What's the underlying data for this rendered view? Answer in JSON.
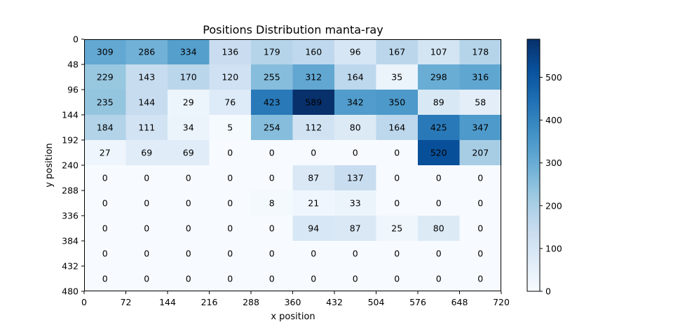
{
  "chart_data": {
    "type": "heatmap",
    "title": "Positions Distribution manta-ray",
    "xlabel": "x position",
    "ylabel": "y position",
    "x_ticks": [
      "0",
      "72",
      "144",
      "216",
      "288",
      "360",
      "432",
      "504",
      "576",
      "648",
      "720"
    ],
    "y_ticks": [
      "0",
      "48",
      "96",
      "144",
      "192",
      "240",
      "288",
      "336",
      "384",
      "432",
      "480"
    ],
    "xlim": [
      0,
      720
    ],
    "ylim": [
      480,
      0
    ],
    "colormap": "Blues",
    "colorbar": {
      "min": 0,
      "max": 589,
      "ticks": [
        "0",
        "100",
        "200",
        "300",
        "400",
        "500"
      ]
    },
    "values": [
      [
        309,
        286,
        334,
        136,
        179,
        160,
        96,
        167,
        107,
        178
      ],
      [
        229,
        143,
        170,
        120,
        255,
        312,
        164,
        35,
        298,
        316
      ],
      [
        235,
        144,
        29,
        76,
        423,
        589,
        342,
        350,
        89,
        58
      ],
      [
        184,
        111,
        34,
        5,
        254,
        112,
        80,
        164,
        425,
        347
      ],
      [
        27,
        69,
        69,
        0,
        0,
        0,
        0,
        0,
        520,
        207
      ],
      [
        0,
        0,
        0,
        0,
        0,
        87,
        137,
        0,
        0,
        0
      ],
      [
        0,
        0,
        0,
        0,
        8,
        21,
        33,
        0,
        0,
        0
      ],
      [
        0,
        0,
        0,
        0,
        0,
        94,
        87,
        25,
        80,
        0
      ],
      [
        0,
        0,
        0,
        0,
        0,
        0,
        0,
        0,
        0,
        0
      ],
      [
        0,
        0,
        0,
        0,
        0,
        0,
        0,
        0,
        0,
        0
      ]
    ]
  }
}
